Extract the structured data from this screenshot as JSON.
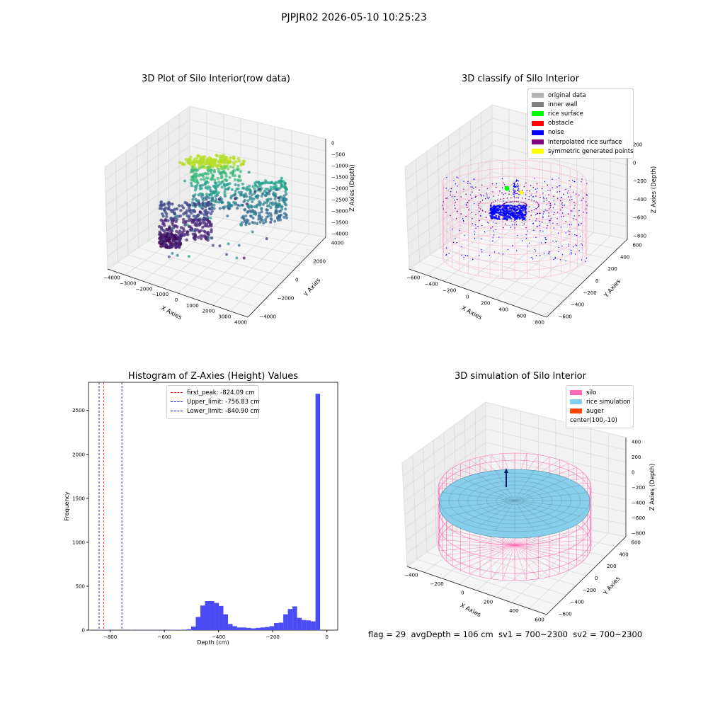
{
  "suptitle": "PJPJR02 2026-05-10 10:25:23",
  "status_text": "flag = 29  avgDepth = 106 cm  sv1 = 700~2300  sv2 = 700~2300",
  "panels": {
    "raw": {
      "title": "3D Plot of Silo Interior(row data)",
      "xlabel": "X Axies",
      "ylabel": "Y Axies",
      "zlabel": "Z Axies (Depth)",
      "xticks": [
        "−4000",
        "−3000",
        "−2000",
        "−1000",
        "0",
        "1000",
        "2000",
        "3000",
        "4000"
      ],
      "yticks": [
        "4000",
        "2000",
        "0",
        "−2000",
        "−4000"
      ],
      "zticks": [
        "0",
        "−500",
        "−1000",
        "−1500",
        "−2000",
        "−2500",
        "−3000",
        "−3500",
        "−4000"
      ]
    },
    "classify": {
      "title": "3D classify of Silo Interior",
      "xlabel": "X Axies",
      "ylabel": "Y Axies",
      "zlabel": "Z Axies (Depth)",
      "xticks": [
        "−600",
        "−400",
        "−200",
        "0",
        "200",
        "400",
        "600",
        "800"
      ],
      "yticks": [
        "600",
        "400",
        "200",
        "0",
        "−200",
        "−400",
        "−600"
      ],
      "zticks": [
        "200",
        "0",
        "−200",
        "−400",
        "−600",
        "−800"
      ],
      "legend": [
        {
          "label": "original data",
          "color": "#b3b3b3"
        },
        {
          "label": "inner wall",
          "color": "#808080"
        },
        {
          "label": "rice surface",
          "color": "#00ff00"
        },
        {
          "label": "obstacle",
          "color": "#ff0000"
        },
        {
          "label": "noise",
          "color": "#0000ff"
        },
        {
          "label": "interpolated rice surface",
          "color": "#800080"
        },
        {
          "label": "symmetric generated points",
          "color": "#ffff00"
        }
      ]
    },
    "histogram": {
      "title": "Histogram of Z-Axies (Height) Values",
      "legend": [
        {
          "label": "first_peak: -824.09 cm",
          "color": "#ff0000"
        },
        {
          "label": "Upper_limit: -756.83 cm",
          "color": "#0000ff"
        },
        {
          "label": "Lower_limit: -840.90 cm",
          "color": "#0000ff"
        }
      ]
    },
    "simulation": {
      "title": "3D simulation of Silo Interior",
      "xlabel": "X Axies",
      "ylabel": "Y Axies",
      "zlabel": "Z Axies (Depth)",
      "xticks": [
        "−400",
        "−200",
        "0",
        "200",
        "400",
        "600"
      ],
      "yticks": [
        "600",
        "400",
        "200",
        "0",
        "−200",
        "−400",
        "−600"
      ],
      "zticks": [
        "400",
        "200",
        "0",
        "−200",
        "−400",
        "−600",
        "−800"
      ],
      "legend": [
        {
          "label": "silo",
          "color": "#ff69b4"
        },
        {
          "label": "rice simulation",
          "color": "#87ceeb"
        },
        {
          "label": "auger",
          "color": "#ff4500"
        },
        {
          "label": "center(100,-10)",
          "color": ""
        }
      ]
    }
  },
  "chart_data": {
    "type": "bar",
    "title": "Histogram of Z-Axies (Height) Values",
    "xlabel": "Depth (cm)",
    "ylabel": "Frequency",
    "xlim": [
      -880,
      40
    ],
    "ylim": [
      0,
      2820
    ],
    "xticks": [
      -800,
      -600,
      -400,
      -200,
      0
    ],
    "yticks": [
      0,
      500,
      1000,
      1500,
      2000,
      2500
    ],
    "bin_width": 17,
    "bins": [
      {
        "x": -841,
        "y": 4
      },
      {
        "x": -824,
        "y": 3
      },
      {
        "x": -756,
        "y": 5
      },
      {
        "x": -730,
        "y": 3
      },
      {
        "x": -705,
        "y": 2
      },
      {
        "x": -688,
        "y": 3
      },
      {
        "x": -671,
        "y": 3
      },
      {
        "x": -654,
        "y": 3
      },
      {
        "x": -637,
        "y": 3
      },
      {
        "x": -620,
        "y": 2
      },
      {
        "x": -586,
        "y": 3
      },
      {
        "x": -569,
        "y": 3
      },
      {
        "x": -552,
        "y": 4
      },
      {
        "x": -535,
        "y": 5
      },
      {
        "x": -518,
        "y": 10
      },
      {
        "x": -501,
        "y": 40
      },
      {
        "x": -484,
        "y": 150
      },
      {
        "x": -467,
        "y": 280
      },
      {
        "x": -450,
        "y": 330
      },
      {
        "x": -433,
        "y": 330
      },
      {
        "x": -416,
        "y": 310
      },
      {
        "x": -399,
        "y": 275
      },
      {
        "x": -382,
        "y": 180
      },
      {
        "x": -365,
        "y": 70
      },
      {
        "x": -348,
        "y": 45
      },
      {
        "x": -331,
        "y": 30
      },
      {
        "x": -314,
        "y": 30
      },
      {
        "x": -297,
        "y": 25
      },
      {
        "x": -280,
        "y": 20
      },
      {
        "x": -263,
        "y": 25
      },
      {
        "x": -246,
        "y": 30
      },
      {
        "x": -229,
        "y": 35
      },
      {
        "x": -212,
        "y": 45
      },
      {
        "x": -195,
        "y": 80
      },
      {
        "x": -178,
        "y": 85
      },
      {
        "x": -161,
        "y": 180
      },
      {
        "x": -144,
        "y": 240
      },
      {
        "x": -127,
        "y": 270
      },
      {
        "x": -110,
        "y": 140
      },
      {
        "x": -93,
        "y": 115
      },
      {
        "x": -76,
        "y": 110
      },
      {
        "x": -59,
        "y": 100
      },
      {
        "x": -42,
        "y": 2690
      }
    ],
    "vlines": [
      {
        "name": "first_peak",
        "x": -824.09,
        "color": "#ff0000"
      },
      {
        "name": "Upper_limit",
        "x": -756.83,
        "color": "#0000ff"
      },
      {
        "name": "Lower_limit",
        "x": -840.9,
        "color": "#0000ff"
      }
    ]
  }
}
